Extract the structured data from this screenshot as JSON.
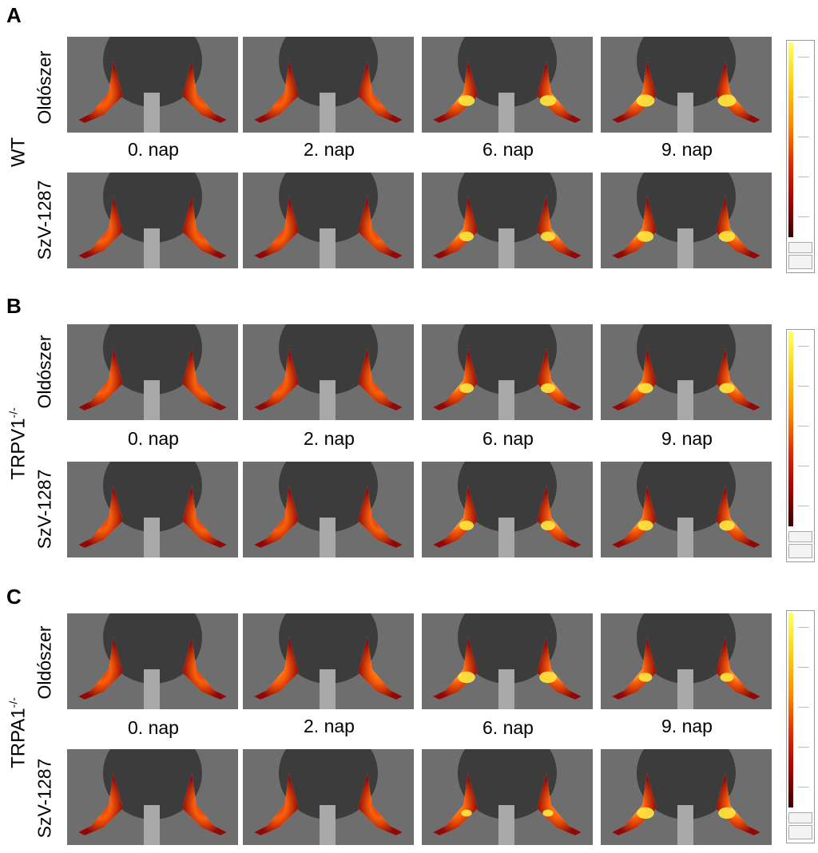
{
  "panels": [
    {
      "letter": "A",
      "genotype": "WT",
      "genotype_sup": "",
      "rows": [
        "Oldószer",
        "SzV-1287"
      ],
      "days": [
        "0. nap",
        "2. nap",
        "6. nap",
        "9. nap"
      ],
      "intensity": [
        [
          0.15,
          0.35,
          0.85,
          0.95
        ],
        [
          0.15,
          0.35,
          0.75,
          0.85
        ]
      ]
    },
    {
      "letter": "B",
      "genotype": "TRPV1",
      "genotype_sup": "-/-",
      "rows": [
        "Oldószer",
        "SzV-1287"
      ],
      "days": [
        "0. nap",
        "2. nap",
        "6. nap",
        "9. nap"
      ],
      "intensity": [
        [
          0.15,
          0.3,
          0.75,
          0.8
        ],
        [
          0.15,
          0.2,
          0.75,
          0.8
        ]
      ]
    },
    {
      "letter": "C",
      "genotype": "TRPA1",
      "genotype_sup": "-/-",
      "rows": [
        "Oldószer",
        "SzV-1287"
      ],
      "days": [
        "0. nap",
        "2. nap",
        "6. nap",
        "9. nap"
      ],
      "intensity": [
        [
          0.25,
          0.5,
          0.9,
          0.7
        ],
        [
          0.2,
          0.15,
          0.55,
          0.9
        ]
      ]
    }
  ],
  "colors": {
    "background_image": "#6b6b6b",
    "scale_high": "#ffff66",
    "scale_mid": "#ff8a00",
    "scale_low": "#3a0000"
  }
}
